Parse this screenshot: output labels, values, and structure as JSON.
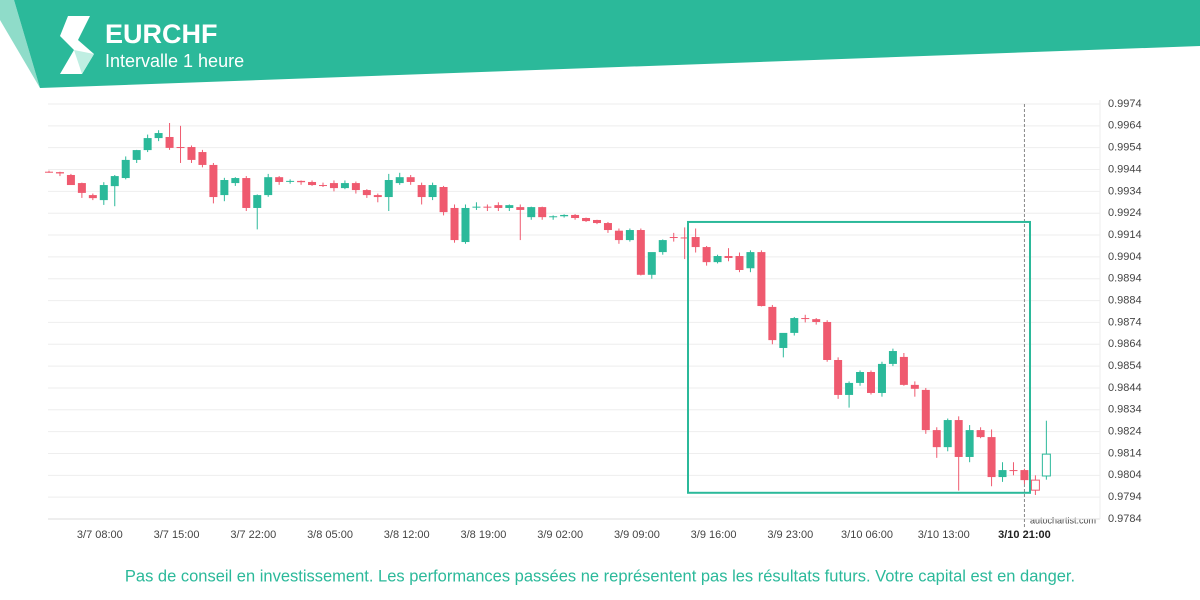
{
  "header": {
    "title": "EURCHF",
    "subtitle": "Intervalle 1 heure"
  },
  "chart_data": {
    "type": "candlestick",
    "categories": [
      null,
      null,
      null,
      null,
      "3/7 08:00",
      null,
      null,
      null,
      null,
      null,
      null,
      "3/7 15:00",
      null,
      null,
      null,
      null,
      null,
      null,
      "3/7 22:00",
      null,
      null,
      null,
      null,
      null,
      null,
      "3/8 05:00",
      null,
      null,
      null,
      null,
      null,
      null,
      "3/8 12:00",
      null,
      null,
      null,
      null,
      null,
      null,
      "3/8 19:00",
      null,
      null,
      null,
      null,
      null,
      null,
      "3/9 02:00",
      null,
      null,
      null,
      null,
      null,
      null,
      "3/9 09:00",
      null,
      null,
      null,
      null,
      null,
      null,
      "3/9 16:00",
      null,
      null,
      null,
      null,
      null,
      null,
      "3/9 23:00",
      null,
      null,
      null,
      null,
      null,
      null,
      "3/10 06:00",
      null,
      null,
      null,
      null,
      null,
      null,
      "3/10 13:00",
      null,
      null,
      null,
      null,
      null,
      null,
      null,
      "3/10 21:00",
      null,
      null
    ],
    "open": [
      0.9943,
      0.99428,
      0.99415,
      0.99378,
      0.99323,
      0.993,
      0.99364,
      0.99401,
      0.99484,
      0.99529,
      0.99584,
      0.99589,
      0.99543,
      0.99543,
      0.9952,
      0.99461,
      0.99323,
      0.99378,
      0.99401,
      0.99264,
      0.99323,
      0.99405,
      0.99385,
      0.99388,
      0.99383,
      0.99369,
      0.99378,
      0.99355,
      0.99378,
      0.99346,
      0.99323,
      0.99314,
      0.99378,
      0.99405,
      0.99369,
      0.99314,
      0.9936,
      0.99264,
      0.99108,
      0.99268,
      0.9927,
      0.99277,
      0.99264,
      0.99268,
      0.99222,
      0.99268,
      0.99222,
      0.99226,
      0.99232,
      0.99218,
      0.99209,
      0.99195,
      0.9916,
      0.99117,
      0.99163,
      0.98958,
      0.99062,
      0.99131,
      0.99129,
      0.99131,
      0.99085,
      0.99016,
      0.99044,
      0.99044,
      0.98988,
      0.99062,
      0.98811,
      0.98623,
      0.98692,
      0.9876,
      0.98755,
      0.98742,
      0.98568,
      0.98408,
      0.98463,
      0.98513,
      0.98417,
      0.9855,
      0.98582,
      0.98454,
      0.98431,
      0.98247,
      0.98169,
      0.98293,
      0.98124,
      0.98247,
      0.98215,
      0.98032,
      0.98064,
      0.98064,
      0.98018,
      0.98037
    ],
    "high": [
      0.99435,
      0.9943,
      0.9942,
      0.9938,
      0.9933,
      0.99382,
      0.99415,
      0.995,
      0.9953,
      0.996,
      0.9962,
      0.99653,
      0.9964,
      0.9955,
      0.9953,
      0.9947,
      0.99402,
      0.99405,
      0.9941,
      0.99326,
      0.9942,
      0.9941,
      0.99395,
      0.9939,
      0.9939,
      0.9938,
      0.9939,
      0.9939,
      0.99385,
      0.9935,
      0.9933,
      0.9942,
      0.99425,
      0.99415,
      0.9938,
      0.9938,
      0.99365,
      0.9928,
      0.9928,
      0.9929,
      0.9928,
      0.9929,
      0.9928,
      0.9928,
      0.9927,
      0.9927,
      0.9923,
      0.99235,
      0.99236,
      0.9922,
      0.9921,
      0.992,
      0.9917,
      0.9917,
      0.9917,
      0.9906,
      0.9912,
      0.9915,
      0.99175,
      0.9917,
      0.9909,
      0.9905,
      0.9908,
      0.9906,
      0.9907,
      0.9907,
      0.9882,
      0.9869,
      0.98765,
      0.98775,
      0.9876,
      0.9875,
      0.9858,
      0.9847,
      0.9852,
      0.9852,
      0.9856,
      0.9862,
      0.986,
      0.9847,
      0.9844,
      0.9826,
      0.983,
      0.9831,
      0.9827,
      0.9826,
      0.9825,
      0.981,
      0.981,
      0.9807,
      0.9804,
      0.9829
    ],
    "low": [
      0.99425,
      0.9941,
      0.9937,
      0.9931,
      0.993,
      0.99278,
      0.99272,
      0.99395,
      0.9947,
      0.9952,
      0.9957,
      0.9953,
      0.9947,
      0.9947,
      0.9945,
      0.99285,
      0.99295,
      0.99365,
      0.9925,
      0.99166,
      0.99315,
      0.9937,
      0.99375,
      0.9937,
      0.99365,
      0.9936,
      0.9934,
      0.9935,
      0.9933,
      0.9931,
      0.9929,
      0.9925,
      0.9937,
      0.9937,
      0.9928,
      0.993,
      0.9923,
      0.99105,
      0.991,
      0.99255,
      0.9925,
      0.9925,
      0.9925,
      0.99117,
      0.9921,
      0.9921,
      0.9921,
      0.9922,
      0.9921,
      0.992,
      0.9919,
      0.9915,
      0.991,
      0.9911,
      0.98955,
      0.9894,
      0.9905,
      0.9911,
      0.9903,
      0.9906,
      0.99,
      0.9901,
      0.9902,
      0.9897,
      0.9897,
      0.98813,
      0.9864,
      0.9858,
      0.9868,
      0.9874,
      0.9873,
      0.9856,
      0.9839,
      0.9835,
      0.9845,
      0.9841,
      0.984,
      0.9854,
      0.9845,
      0.984,
      0.9823,
      0.9812,
      0.9815,
      0.9797,
      0.981,
      0.9821,
      0.9799,
      0.9801,
      0.9804,
      0.98,
      0.9795,
      0.9802
    ],
    "close": [
      0.99428,
      0.99422,
      0.99369,
      0.99333,
      0.99309,
      0.99369,
      0.9941,
      0.99484,
      0.99529,
      0.99584,
      0.99607,
      0.99539,
      0.9954,
      0.99484,
      0.99461,
      0.99314,
      0.99392,
      0.99401,
      0.99264,
      0.99323,
      0.99405,
      0.99383,
      0.99388,
      0.99382,
      0.99369,
      0.99365,
      0.99355,
      0.99378,
      0.99346,
      0.99323,
      0.99314,
      0.99392,
      0.99405,
      0.99383,
      0.99314,
      0.99369,
      0.99245,
      0.99117,
      0.99264,
      0.9927,
      0.99268,
      0.99264,
      0.99277,
      0.99255,
      0.99268,
      0.99222,
      0.99226,
      0.99232,
      0.99218,
      0.99204,
      0.99195,
      0.99163,
      0.99117,
      0.99163,
      0.98958,
      0.99062,
      0.99117,
      0.99129,
      0.99126,
      0.99085,
      0.99016,
      0.99044,
      0.99035,
      0.9898,
      0.99062,
      0.98815,
      0.98659,
      0.98692,
      0.9876,
      0.98757,
      0.98742,
      0.98568,
      0.98408,
      0.98463,
      0.98513,
      0.98417,
      0.9855,
      0.98609,
      0.98454,
      0.98436,
      0.98247,
      0.98169,
      0.98293,
      0.98124,
      0.98247,
      0.98215,
      0.98032,
      0.98064,
      0.98062,
      0.98018,
      0.97972,
      0.98137
    ],
    "up_color": "#2bb99a",
    "down_color": "#ef5a6f",
    "ylim": [
      0.9784,
      0.9974
    ],
    "yticks": [
      0.9784,
      0.9794,
      0.9804,
      0.9814,
      0.9824,
      0.9834,
      0.9844,
      0.9854,
      0.9864,
      0.9874,
      0.9884,
      0.9894,
      0.9904,
      0.9914,
      0.9924,
      0.9934,
      0.9944,
      0.9954,
      0.9964,
      0.9974
    ],
    "grid": true,
    "pattern_box": {
      "top": 0.992,
      "bottom": 0.9796,
      "color": "#2bb99a"
    },
    "watermark": "autochartist.com"
  },
  "footer": {
    "disclaimer": "Pas de conseil en investissement. Les performances passées ne représentent pas les résultats futurs. Votre capital est en danger."
  }
}
